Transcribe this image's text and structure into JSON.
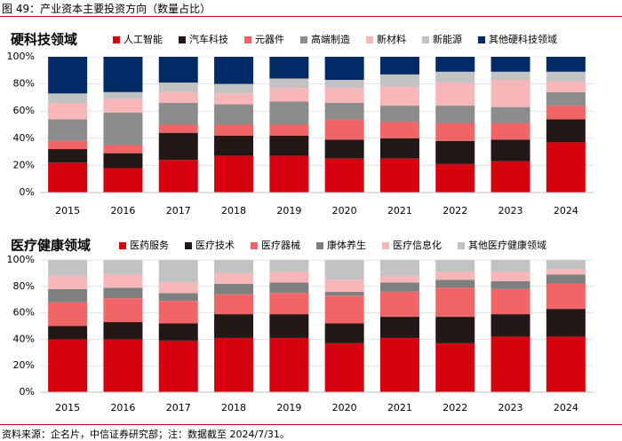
{
  "figure_title": "图 49：产业资本主要投资方向（数量占比）",
  "source_note": "资料来源：企名片，中信证券研究部；注：数据截至 2024/7/31。",
  "chart_data": [
    {
      "type": "bar",
      "stacked": true,
      "title": "硬科技领域",
      "categories": [
        "2015",
        "2016",
        "2017",
        "2018",
        "2019",
        "2020",
        "2021",
        "2022",
        "2023",
        "2024"
      ],
      "ylim": [
        0,
        100
      ],
      "yticks": [
        "0%",
        "20%",
        "40%",
        "60%",
        "80%",
        "100%"
      ],
      "legend_position": "top",
      "series": [
        {
          "name": "人工智能",
          "color": "#d7000f",
          "values": [
            22,
            18,
            24,
            27,
            27,
            25,
            25,
            21,
            23,
            37
          ]
        },
        {
          "name": "汽车科技",
          "color": "#231815",
          "values": [
            10,
            11,
            20,
            15,
            15,
            14,
            15,
            17,
            16,
            17
          ]
        },
        {
          "name": "元器件",
          "color": "#f16567",
          "values": [
            6,
            6,
            6,
            8,
            8,
            15,
            12,
            13,
            12,
            10
          ]
        },
        {
          "name": "高端制造",
          "color": "#8c8c8c",
          "values": [
            16,
            24,
            16,
            15,
            17,
            12,
            12,
            13,
            12,
            10
          ]
        },
        {
          "name": "新材料",
          "color": "#f7b7b8",
          "values": [
            12,
            10,
            8,
            8,
            10,
            11,
            14,
            17,
            20,
            8
          ]
        },
        {
          "name": "新能源",
          "color": "#c2c2c2",
          "values": [
            7,
            5,
            7,
            7,
            7,
            6,
            9,
            8,
            6,
            7
          ]
        },
        {
          "name": "其他硬科技领域",
          "color": "#002b66",
          "values": [
            27,
            26,
            19,
            20,
            16,
            17,
            13,
            11,
            11,
            11
          ]
        }
      ]
    },
    {
      "type": "bar",
      "stacked": true,
      "title": "医疗健康领域",
      "categories": [
        "2015",
        "2016",
        "2017",
        "2018",
        "2019",
        "2020",
        "2021",
        "2022",
        "2023",
        "2024"
      ],
      "ylim": [
        0,
        100
      ],
      "yticks": [
        "0%",
        "20%",
        "40%",
        "60%",
        "80%",
        "100%"
      ],
      "legend_position": "top",
      "series": [
        {
          "name": "医药服务",
          "color": "#d7000f",
          "values": [
            40,
            40,
            39,
            41,
            41,
            37,
            41,
            37,
            42,
            42
          ]
        },
        {
          "name": "医疗技术",
          "color": "#231815",
          "values": [
            10,
            13,
            13,
            18,
            18,
            15,
            16,
            20,
            17,
            21
          ]
        },
        {
          "name": "医疗器械",
          "color": "#f16567",
          "values": [
            18,
            18,
            17,
            15,
            16,
            21,
            19,
            22,
            19,
            19
          ]
        },
        {
          "name": "康体养生",
          "color": "#7f7f7f",
          "values": [
            10,
            8,
            6,
            8,
            8,
            3,
            7,
            6,
            6,
            7
          ]
        },
        {
          "name": "医疗信息化",
          "color": "#f7b7b8",
          "values": [
            10,
            10,
            8,
            8,
            8,
            9,
            5,
            6,
            7,
            4
          ]
        },
        {
          "name": "其他医疗健康领域",
          "color": "#c2c2c2",
          "values": [
            12,
            11,
            17,
            10,
            9,
            15,
            12,
            9,
            9,
            7
          ]
        }
      ]
    }
  ]
}
